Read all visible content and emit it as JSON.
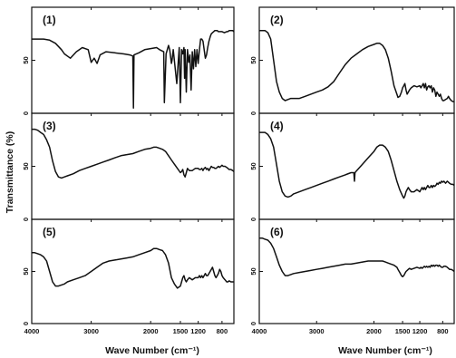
{
  "chart_data": {
    "type": "line",
    "ylabel": "Transmittance (%)",
    "xlabel_left": "Wave Number (cm⁻¹)",
    "xlabel_right": "Wave Number (cm⁻¹)",
    "x_ticks": [
      "4000",
      "3000",
      "2000",
      "1500",
      "1200",
      "800"
    ],
    "y_tick_50": "50",
    "y_tick_0": "0",
    "xlim": [
      4000,
      600
    ],
    "ylim": [
      0,
      100
    ],
    "panels": [
      {
        "label": "(1)",
        "col": 0,
        "row": 0,
        "x": [
          4000,
          3900,
          3800,
          3700,
          3600,
          3500,
          3450,
          3350,
          3250,
          3150,
          3050,
          3000,
          2950,
          2900,
          2850,
          2750,
          2600,
          2450,
          2350,
          2300,
          2290,
          2280,
          2200,
          2100,
          2000,
          1900,
          1850,
          1780,
          1770,
          1740,
          1700,
          1680,
          1650,
          1640,
          1620,
          1560,
          1520,
          1500,
          1480,
          1460,
          1440,
          1430,
          1420,
          1400,
          1380,
          1360,
          1340,
          1320,
          1300,
          1280,
          1260,
          1240,
          1220,
          1200,
          1180,
          1160,
          1140,
          1120,
          1100,
          1080,
          1060,
          1040,
          1020,
          1000,
          980,
          960,
          940,
          920,
          900,
          880,
          860,
          840,
          800,
          760,
          720,
          700,
          680,
          650,
          620,
          600
        ],
        "y": [
          70,
          70,
          70,
          69,
          66,
          60,
          56,
          52,
          58,
          62,
          60,
          48,
          52,
          47,
          55,
          58,
          57,
          56,
          55,
          54,
          5,
          55,
          57,
          60,
          61,
          62,
          60,
          58,
          10,
          56,
          64,
          60,
          47,
          50,
          60,
          28,
          62,
          10,
          60,
          56,
          62,
          33,
          60,
          20,
          60,
          48,
          55,
          22,
          58,
          42,
          60,
          44,
          60,
          47,
          60,
          70,
          70,
          68,
          60,
          52,
          55,
          62,
          68,
          72,
          75,
          76,
          77,
          78,
          78,
          78,
          77,
          77,
          77,
          76,
          77,
          77,
          78,
          78,
          78,
          77
        ]
      },
      {
        "label": "(2)",
        "col": 1,
        "row": 0,
        "x": [
          4000,
          3950,
          3900,
          3850,
          3800,
          3750,
          3700,
          3650,
          3600,
          3550,
          3500,
          3450,
          3400,
          3300,
          3200,
          3100,
          3000,
          2900,
          2800,
          2700,
          2600,
          2500,
          2400,
          2300,
          2200,
          2100,
          2000,
          1950,
          1900,
          1850,
          1800,
          1750,
          1700,
          1650,
          1600,
          1580,
          1550,
          1520,
          1500,
          1480,
          1460,
          1440,
          1420,
          1400,
          1380,
          1350,
          1300,
          1250,
          1200,
          1180,
          1160,
          1140,
          1120,
          1100,
          1080,
          1060,
          1040,
          1020,
          1000,
          980,
          960,
          940,
          920,
          900,
          880,
          860,
          840,
          820,
          800,
          780,
          750,
          720,
          700,
          680,
          650,
          620,
          600
        ],
        "y": [
          78,
          78,
          78,
          76,
          70,
          50,
          30,
          20,
          14,
          12,
          13,
          14,
          14,
          14,
          16,
          18,
          20,
          22,
          25,
          30,
          38,
          46,
          52,
          56,
          60,
          63,
          65,
          66,
          66,
          64,
          60,
          52,
          40,
          26,
          18,
          15,
          16,
          20,
          24,
          26,
          28,
          22,
          18,
          20,
          22,
          24,
          26,
          25,
          26,
          24,
          26,
          28,
          24,
          28,
          22,
          25,
          26,
          24,
          26,
          20,
          24,
          22,
          16,
          20,
          18,
          16,
          18,
          14,
          12,
          12,
          13,
          14,
          16,
          14,
          12,
          11,
          11
        ]
      },
      {
        "label": "(3)",
        "col": 0,
        "row": 1,
        "x": [
          4000,
          3950,
          3900,
          3850,
          3800,
          3750,
          3700,
          3650,
          3600,
          3550,
          3500,
          3450,
          3400,
          3300,
          3200,
          3100,
          3000,
          2900,
          2800,
          2700,
          2600,
          2500,
          2400,
          2300,
          2200,
          2100,
          2000,
          1950,
          1900,
          1850,
          1800,
          1750,
          1700,
          1650,
          1600,
          1550,
          1500,
          1480,
          1460,
          1440,
          1420,
          1400,
          1380,
          1350,
          1300,
          1250,
          1200,
          1180,
          1160,
          1140,
          1120,
          1100,
          1080,
          1060,
          1040,
          1020,
          1000,
          980,
          960,
          940,
          920,
          900,
          880,
          860,
          840,
          820,
          800,
          780,
          750,
          720,
          700,
          680,
          650,
          620,
          600
        ],
        "y": [
          85,
          85,
          84,
          82,
          80,
          75,
          68,
          55,
          45,
          40,
          39,
          40,
          41,
          43,
          46,
          48,
          50,
          52,
          54,
          56,
          58,
          60,
          61,
          62,
          64,
          66,
          67,
          68,
          68,
          67,
          66,
          64,
          60,
          56,
          52,
          48,
          44,
          45,
          47,
          42,
          40,
          44,
          48,
          46,
          46,
          48,
          48,
          47,
          47,
          48,
          46,
          48,
          49,
          47,
          48,
          46,
          48,
          50,
          49,
          49,
          48,
          48,
          49,
          50,
          49,
          50,
          51,
          50,
          50,
          49,
          48,
          47,
          47,
          46,
          45
        ]
      },
      {
        "label": "(4)",
        "col": 1,
        "row": 1,
        "x": [
          4000,
          3950,
          3900,
          3850,
          3800,
          3750,
          3700,
          3650,
          3600,
          3550,
          3500,
          3450,
          3400,
          3300,
          3200,
          3100,
          3000,
          2900,
          2800,
          2700,
          2600,
          2500,
          2400,
          2350,
          2340,
          2330,
          2300,
          2200,
          2100,
          2000,
          1950,
          1900,
          1850,
          1800,
          1750,
          1700,
          1650,
          1600,
          1550,
          1500,
          1480,
          1460,
          1440,
          1420,
          1400,
          1380,
          1350,
          1300,
          1250,
          1200,
          1180,
          1160,
          1140,
          1120,
          1100,
          1080,
          1060,
          1040,
          1020,
          1000,
          980,
          960,
          940,
          920,
          900,
          880,
          860,
          840,
          820,
          800,
          780,
          750,
          720,
          700,
          680,
          650,
          620,
          600
        ],
        "y": [
          82,
          82,
          82,
          80,
          76,
          68,
          52,
          36,
          26,
          22,
          21,
          22,
          24,
          26,
          28,
          30,
          32,
          34,
          36,
          38,
          40,
          42,
          44,
          44,
          36,
          44,
          46,
          52,
          58,
          64,
          68,
          70,
          70,
          68,
          64,
          56,
          46,
          36,
          28,
          22,
          20,
          22,
          26,
          28,
          30,
          28,
          26,
          26,
          28,
          26,
          28,
          30,
          28,
          30,
          28,
          30,
          32,
          30,
          30,
          32,
          30,
          32,
          31,
          32,
          34,
          33,
          35,
          34,
          36,
          35,
          36,
          34,
          36,
          35,
          34,
          33,
          33,
          32
        ]
      },
      {
        "label": "(5)",
        "col": 0,
        "row": 2,
        "x": [
          4000,
          3950,
          3900,
          3850,
          3800,
          3750,
          3700,
          3650,
          3600,
          3550,
          3500,
          3450,
          3400,
          3300,
          3200,
          3100,
          3000,
          2900,
          2800,
          2700,
          2600,
          2500,
          2400,
          2300,
          2200,
          2100,
          2000,
          1950,
          1900,
          1850,
          1800,
          1750,
          1700,
          1650,
          1600,
          1550,
          1500,
          1480,
          1460,
          1440,
          1420,
          1400,
          1380,
          1350,
          1300,
          1250,
          1200,
          1180,
          1160,
          1140,
          1120,
          1100,
          1080,
          1060,
          1040,
          1020,
          1000,
          980,
          960,
          940,
          920,
          900,
          880,
          860,
          840,
          820,
          800,
          780,
          750,
          720,
          700,
          680,
          650,
          620,
          600
        ],
        "y": [
          68,
          68,
          67,
          66,
          64,
          60,
          50,
          40,
          36,
          36,
          37,
          38,
          40,
          42,
          44,
          46,
          50,
          54,
          58,
          60,
          61,
          62,
          63,
          64,
          66,
          68,
          70,
          72,
          72,
          71,
          70,
          66,
          58,
          44,
          38,
          34,
          36,
          40,
          44,
          46,
          42,
          40,
          42,
          44,
          42,
          44,
          44,
          46,
          44,
          46,
          44,
          46,
          48,
          46,
          46,
          48,
          50,
          52,
          54,
          50,
          46,
          44,
          46,
          48,
          52,
          50,
          46,
          44,
          42,
          40,
          40,
          41,
          40,
          40,
          40
        ]
      },
      {
        "label": "(6)",
        "col": 1,
        "row": 2,
        "x": [
          4000,
          3950,
          3900,
          3850,
          3800,
          3750,
          3700,
          3650,
          3600,
          3550,
          3500,
          3450,
          3400,
          3300,
          3200,
          3100,
          3000,
          2900,
          2800,
          2700,
          2600,
          2500,
          2400,
          2300,
          2200,
          2100,
          2000,
          1950,
          1900,
          1850,
          1800,
          1750,
          1700,
          1650,
          1600,
          1580,
          1560,
          1540,
          1520,
          1500,
          1480,
          1460,
          1440,
          1420,
          1400,
          1380,
          1350,
          1300,
          1250,
          1200,
          1180,
          1160,
          1140,
          1120,
          1100,
          1080,
          1060,
          1040,
          1020,
          1000,
          980,
          960,
          940,
          920,
          900,
          880,
          860,
          840,
          820,
          800,
          780,
          750,
          720,
          700,
          680,
          650,
          620,
          600
        ],
        "y": [
          82,
          82,
          81,
          80,
          77,
          72,
          64,
          56,
          50,
          46,
          46,
          47,
          48,
          49,
          50,
          51,
          52,
          53,
          54,
          55,
          56,
          57,
          57,
          58,
          59,
          60,
          60,
          60,
          60,
          60,
          59,
          58,
          57,
          56,
          54,
          52,
          50,
          48,
          46,
          45,
          46,
          48,
          50,
          51,
          52,
          53,
          52,
          53,
          54,
          53,
          54,
          53,
          54,
          55,
          54,
          55,
          54,
          55,
          54,
          56,
          55,
          56,
          55,
          56,
          56,
          55,
          56,
          55,
          54,
          54,
          55,
          55,
          54,
          53,
          52,
          52,
          51,
          50
        ]
      }
    ]
  }
}
